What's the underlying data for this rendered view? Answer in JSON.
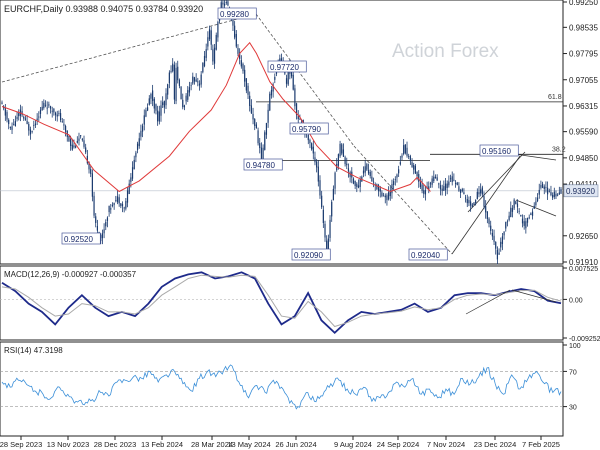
{
  "chart_data": [
    {
      "type": "line",
      "title": "EURCHF,Daily  0.93988 0.94075 0.93784 0.93920",
      "watermark": "Action Forex",
      "ylim": [
        0.9191,
        0.9925
      ],
      "y_ticks": [
        "0.99250",
        "0.98535",
        "0.97795",
        "0.97055",
        "0.96315",
        "0.95590",
        "0.94850",
        "0.94110",
        "0.93920",
        "0.92650",
        "0.91910"
      ],
      "y_tick_values": [
        0.9925,
        0.98535,
        0.97795,
        0.97055,
        0.96315,
        0.9559,
        0.9485,
        0.9411,
        0.9392,
        0.9265,
        0.9191
      ],
      "current_price": 0.9392,
      "series": [
        {
          "name": "price",
          "color": "#1a3a6e",
          "x": [
            0,
            5,
            11,
            17,
            25,
            34,
            42,
            47,
            53,
            55,
            59,
            64,
            69,
            73,
            82,
            89,
            93,
            96,
            97,
            100,
            102,
            103,
            104,
            108,
            114,
            118,
            122,
            124,
            126,
            129,
            131,
            134
          ],
          "values": [
            0.9635,
            0.9565,
            0.9615,
            0.9558,
            0.9638,
            0.9605,
            0.9512,
            0.9545,
            0.9442,
            0.9315,
            0.9252,
            0.9342,
            0.9372,
            0.9342,
            0.9548,
            0.9668,
            0.9595,
            0.9645,
            0.9628,
            0.9722,
            0.9748,
            0.9652,
            0.9738,
            0.9625,
            0.9712,
            0.9695,
            0.9798,
            0.9842,
            0.9752,
            0.9868,
            0.9918,
            0.9925
          ]
        },
        {
          "name": "ma",
          "color": "#e03a3a",
          "x": [
            0,
            12,
            25,
            40,
            55,
            70,
            82,
            100,
            112,
            125,
            134,
            142,
            148,
            152,
            160,
            168,
            178,
            188,
            200,
            212,
            222,
            232,
            244,
            248,
            256
          ],
          "values": [
            0.963,
            0.961,
            0.958,
            0.955,
            0.945,
            0.939,
            0.942,
            0.949,
            0.956,
            0.962,
            0.969,
            0.978,
            0.981,
            0.978,
            0.97,
            0.965,
            0.96,
            0.952,
            0.946,
            0.943,
            0.941,
            0.939,
            0.941,
            0.943,
            0.939
          ]
        }
      ],
      "horizontal_levels": [
        {
          "label": "61.8",
          "value": 0.9643
        },
        {
          "label": "38.2",
          "value": 0.9495
        },
        {
          "label": "",
          "value": 0.9478
        }
      ],
      "annotations": [
        {
          "label": "0.92520",
          "value": 0.9252
        },
        {
          "label": "0.99280",
          "value": 0.9928
        },
        {
          "label": "0.97720",
          "value": 0.9772
        },
        {
          "label": "0.95790",
          "value": 0.9579
        },
        {
          "label": "0.94780",
          "value": 0.9478
        },
        {
          "label": "0.92090",
          "value": 0.9209
        },
        {
          "label": "0.92040",
          "value": 0.9204
        },
        {
          "label": "0.95160",
          "value": 0.9516
        }
      ],
      "x_ticks": [
        "28 Sep 2023",
        "13 Nov 2023",
        "28 Dec 2023",
        "13 Feb 2024",
        "28 Mar 2024",
        "13 May 2024",
        "26 Jun 2024",
        "9 Aug 2024",
        "24 Sep 2024",
        "7 Nov 2024",
        "23 Dec 2024",
        "7 Feb 2025"
      ]
    },
    {
      "type": "line",
      "title": "MACD(12,26,9) -0.000927 -0.000357",
      "ylim": [
        -0.009252,
        0.007525
      ],
      "y_ticks": [
        "0.007525",
        "0.00",
        "-0.009252"
      ],
      "y_tick_values": [
        0.007525,
        0.0,
        -0.009252
      ],
      "series": [
        {
          "name": "macd",
          "color": "#1e2a8a",
          "values": [
            0.004,
            0.002,
            -0.001,
            -0.003,
            -0.006,
            -0.002,
            0.001,
            -0.002,
            -0.004,
            -0.003,
            -0.004,
            -0.001,
            0.003,
            0.005,
            0.006,
            0.0065,
            0.005,
            0.0055,
            0.0065,
            0.005,
            -0.001,
            -0.006,
            -0.004,
            0.0015,
            -0.005,
            -0.008,
            -0.005,
            -0.003,
            -0.0035,
            -0.003,
            -0.0025,
            -0.001,
            -0.003,
            -0.002,
            0.001,
            0.0015,
            0.0015,
            0.001,
            0.0018,
            0.0025,
            0.002,
            -0.0003,
            -0.0009
          ]
        },
        {
          "name": "signal",
          "color": "#aaaaaa",
          "values": [
            0.003,
            0.0025,
            0.0005,
            -0.002,
            -0.004,
            -0.0035,
            -0.001,
            -0.0015,
            -0.003,
            -0.003,
            -0.0035,
            -0.002,
            0.001,
            0.003,
            0.005,
            0.0058,
            0.0055,
            0.0053,
            0.0058,
            0.0055,
            0.001,
            -0.004,
            -0.0045,
            -0.0005,
            -0.003,
            -0.0065,
            -0.0055,
            -0.004,
            -0.0035,
            -0.0032,
            -0.0028,
            -0.0018,
            -0.0025,
            -0.002,
            0.0,
            0.001,
            0.0013,
            0.0011,
            0.0016,
            0.0021,
            0.0022,
            0.0005,
            -0.0004
          ]
        }
      ]
    },
    {
      "type": "line",
      "title": "RSI(14) 47.3198",
      "ylim": [
        0,
        100
      ],
      "y_ticks": [
        "100",
        "70",
        "30",
        "0"
      ],
      "y_tick_values": [
        100,
        70,
        30,
        0
      ],
      "series": [
        {
          "name": "rsi",
          "color": "#3b8fd8",
          "values": [
            58,
            52,
            60,
            55,
            48,
            44,
            40,
            52,
            44,
            36,
            32,
            38,
            46,
            42,
            58,
            60,
            64,
            62,
            70,
            58,
            66,
            70,
            56,
            48,
            62,
            70,
            64,
            72,
            76,
            54,
            40,
            54,
            46,
            60,
            52,
            34,
            30,
            46,
            36,
            42,
            56,
            60,
            50,
            44,
            52,
            36,
            40,
            46,
            58,
            52,
            62,
            44,
            50,
            40,
            50,
            44,
            62,
            56,
            64,
            74,
            56,
            44,
            66,
            50,
            62,
            70,
            56,
            46,
            47
          ]
        }
      ]
    }
  ]
}
